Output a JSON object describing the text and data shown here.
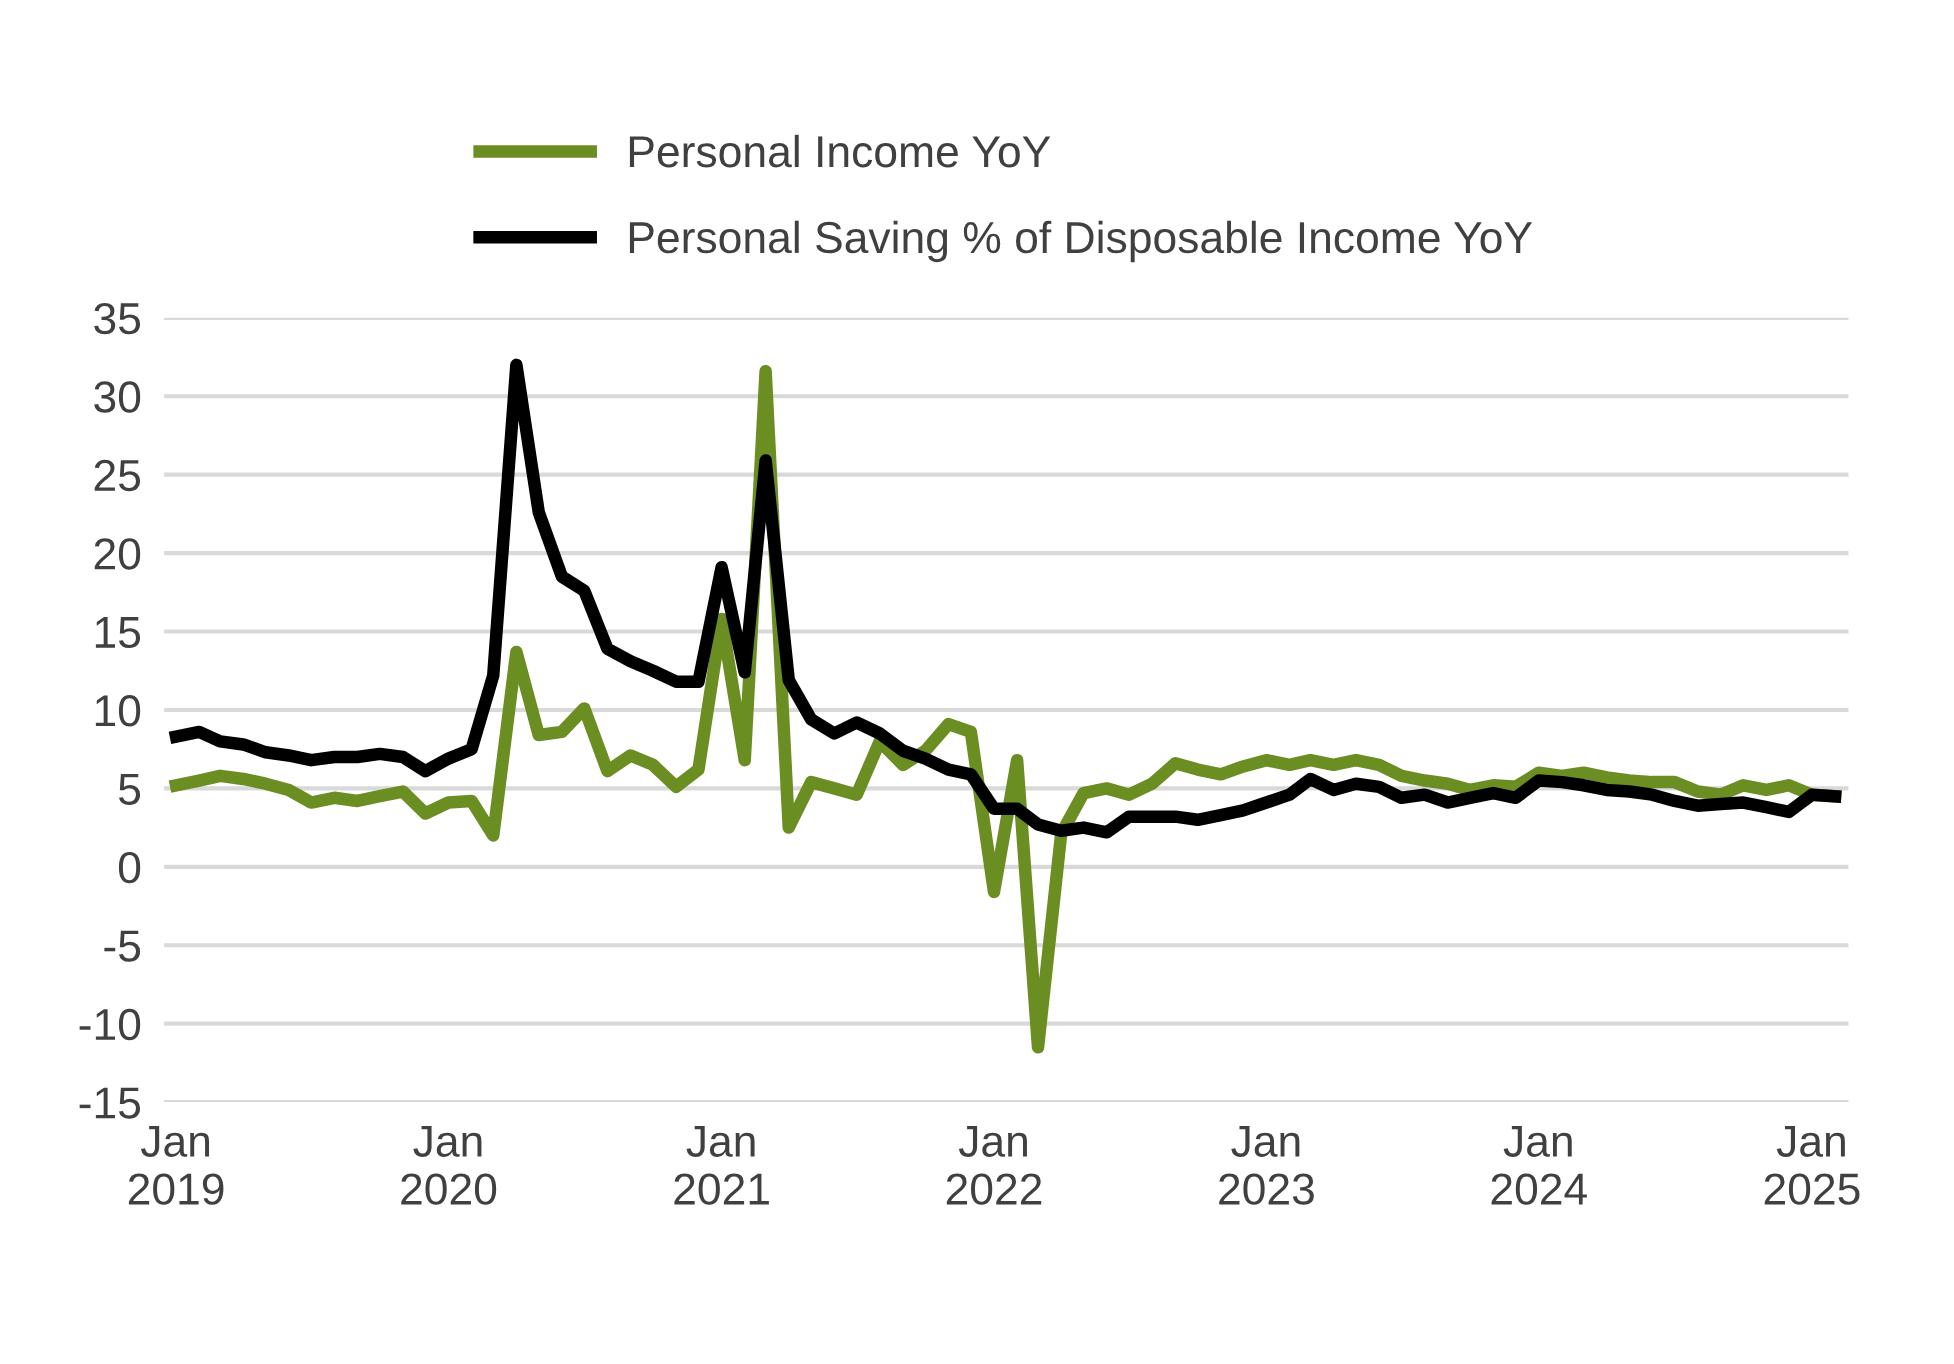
{
  "chart_data": {
    "type": "line",
    "x": [
      "2019-01",
      "2019-02",
      "2019-03",
      "2019-04",
      "2019-05",
      "2019-06",
      "2019-07",
      "2019-08",
      "2019-09",
      "2019-10",
      "2019-11",
      "2019-12",
      "2020-01",
      "2020-02",
      "2020-03",
      "2020-04",
      "2020-05",
      "2020-06",
      "2020-07",
      "2020-08",
      "2020-09",
      "2020-10",
      "2020-11",
      "2020-12",
      "2021-01",
      "2021-02",
      "2021-03",
      "2021-04",
      "2021-05",
      "2021-06",
      "2021-07",
      "2021-08",
      "2021-09",
      "2021-10",
      "2021-11",
      "2021-12",
      "2022-01",
      "2022-02",
      "2022-03",
      "2022-04",
      "2022-05",
      "2022-06",
      "2022-07",
      "2022-08",
      "2022-09",
      "2022-10",
      "2022-11",
      "2022-12",
      "2023-01",
      "2023-02",
      "2023-03",
      "2023-04",
      "2023-05",
      "2023-06",
      "2023-07",
      "2023-08",
      "2023-09",
      "2023-10",
      "2023-11",
      "2023-12",
      "2024-01",
      "2024-02",
      "2024-03",
      "2024-04",
      "2024-05",
      "2024-06",
      "2024-07",
      "2024-08",
      "2024-09",
      "2024-10",
      "2024-11",
      "2024-12",
      "2025-01",
      "2025-02"
    ],
    "series": [
      {
        "name": "Personal Income YoY",
        "color": "#6b8e23",
        "values": [
          5.2,
          5.5,
          5.8,
          5.6,
          5.3,
          4.9,
          4.1,
          4.4,
          4.2,
          4.5,
          4.8,
          3.4,
          4.1,
          4.2,
          2.0,
          13.7,
          8.4,
          8.6,
          10.1,
          6.1,
          7.1,
          6.5,
          5.1,
          6.2,
          15.8,
          6.8,
          31.6,
          2.5,
          5.4,
          5.0,
          4.6,
          8.0,
          6.5,
          7.4,
          9.1,
          8.6,
          -1.6,
          6.8,
          -11.5,
          2.1,
          4.7,
          5.0,
          4.6,
          5.3,
          6.6,
          6.2,
          5.9,
          6.4,
          6.8,
          6.5,
          6.8,
          6.5,
          6.8,
          6.5,
          5.8,
          5.5,
          5.3,
          4.9,
          5.2,
          5.1,
          6.0,
          5.8,
          6.0,
          5.7,
          5.5,
          5.4,
          5.4,
          4.8,
          4.6,
          5.2,
          4.9,
          5.2,
          4.6,
          4.5
        ]
      },
      {
        "name": "Personal Saving % of Disposable Income YoY",
        "color": "#000000",
        "values": [
          8.3,
          8.6,
          8.0,
          7.8,
          7.3,
          7.1,
          6.8,
          7.0,
          7.0,
          7.2,
          7.0,
          6.1,
          6.9,
          7.5,
          12.2,
          32.0,
          22.6,
          18.5,
          17.6,
          13.9,
          13.1,
          12.5,
          11.8,
          11.8,
          19.1,
          12.4,
          25.9,
          11.9,
          9.4,
          8.5,
          9.2,
          8.5,
          7.4,
          6.9,
          6.2,
          5.9,
          3.7,
          3.7,
          2.7,
          2.3,
          2.5,
          2.2,
          3.2,
          3.2,
          3.2,
          3.0,
          3.3,
          3.6,
          4.1,
          4.6,
          5.6,
          4.9,
          5.3,
          5.1,
          4.4,
          4.6,
          4.1,
          4.4,
          4.7,
          4.4,
          5.5,
          5.4,
          5.2,
          4.9,
          4.8,
          4.6,
          4.2,
          3.9,
          4.0,
          4.1,
          3.8,
          3.5,
          4.6,
          4.5
        ]
      }
    ],
    "xlim": [
      "2018-12-16",
      "2025-02-19"
    ],
    "xticks": [
      {
        "value": "2019-01",
        "label": "Jan\n2019"
      },
      {
        "value": "2020-01",
        "label": "Jan\n2020"
      },
      {
        "value": "2021-01",
        "label": "Jan\n2021"
      },
      {
        "value": "2022-01",
        "label": "Jan\n2022"
      },
      {
        "value": "2023-01",
        "label": "Jan\n2023"
      },
      {
        "value": "2024-01",
        "label": "Jan\n2024"
      },
      {
        "value": "2025-01",
        "label": "Jan\n2025"
      }
    ],
    "ylim": [
      -15,
      35
    ],
    "yticks": [
      -15,
      -10,
      -5,
      0,
      5,
      10,
      15,
      20,
      25,
      30,
      35
    ],
    "grid": "y",
    "legend": "top",
    "line_style": "solid",
    "marker": "none"
  }
}
